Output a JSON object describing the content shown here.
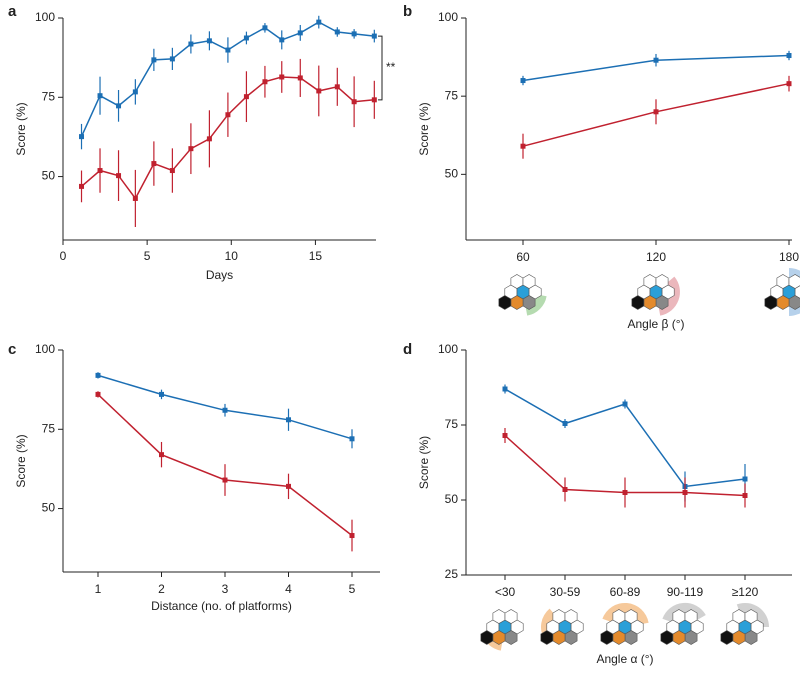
{
  "chart_data": [
    {
      "type": "line",
      "label": "a",
      "ylabel": "Score (%)",
      "xlabel": "Days",
      "annotation": "**",
      "x": [
        1.1,
        2.2,
        3.3,
        4.3,
        5.4,
        6.5,
        7.6,
        8.7,
        9.8,
        10.9,
        12.0,
        13.0,
        14.1,
        15.2,
        16.3,
        17.3,
        18.5
      ],
      "xlim": [
        0,
        18.6
      ],
      "xticks": [
        0,
        5,
        10,
        15
      ],
      "ylim": [
        30,
        100
      ],
      "yticks": [
        50,
        75,
        100
      ],
      "series": [
        {
          "color": "#1c6fb4",
          "values": [
            62.6,
            75.5,
            72.3,
            76.7,
            86.8,
            87.1,
            91.8,
            92.8,
            89.9,
            93.7,
            96.9,
            93.1,
            95.3,
            98.7,
            95.6,
            95.0,
            94.3
          ],
          "errors": [
            4,
            6,
            5,
            4,
            3.5,
            3.5,
            3,
            3,
            4,
            2,
            1.5,
            3,
            2.5,
            2,
            1.5,
            1.5,
            2
          ]
        },
        {
          "color": "#c0212f",
          "values": [
            46.9,
            51.9,
            50.3,
            43.1,
            54.1,
            51.9,
            58.8,
            61.9,
            69.5,
            75.2,
            79.9,
            81.4,
            81.1,
            77.0,
            78.3,
            73.6,
            74.2
          ],
          "errors": [
            5,
            7,
            8,
            9,
            7,
            7,
            8,
            9,
            7,
            8,
            5,
            5,
            6,
            8,
            6,
            8,
            6
          ]
        }
      ]
    },
    {
      "type": "line",
      "label": "b",
      "ylabel": "Score (%)",
      "xlabel": "Angle β (°)",
      "categories": [
        "60",
        "120",
        "180"
      ],
      "ylim": [
        29,
        100
      ],
      "yticks": [
        50,
        75,
        100
      ],
      "series": [
        {
          "color": "#1c6fb4",
          "values": [
            80,
            86.5,
            88
          ],
          "errors": [
            1.5,
            2,
            1.5
          ]
        },
        {
          "color": "#c0212f",
          "values": [
            59,
            70,
            79
          ],
          "errors": [
            4,
            4,
            2.5
          ]
        }
      ]
    },
    {
      "type": "line",
      "label": "c",
      "ylabel": "Score (%)",
      "xlabel": "Distance (no. of platforms)",
      "categories": [
        "1",
        "2",
        "3",
        "4",
        "5"
      ],
      "ylim": [
        30,
        100
      ],
      "yticks": [
        50,
        75,
        100
      ],
      "series": [
        {
          "color": "#1c6fb4",
          "values": [
            92,
            86,
            81,
            78,
            72
          ],
          "errors": [
            1,
            1.5,
            2,
            3.5,
            3
          ]
        },
        {
          "color": "#c0212f",
          "values": [
            86,
            67,
            59,
            57,
            41.5
          ],
          "errors": [
            1,
            4,
            5,
            4,
            5
          ]
        }
      ]
    },
    {
      "type": "line",
      "label": "d",
      "ylabel": "Score (%)",
      "xlabel": "Angle α (°)",
      "categories": [
        "<30",
        "30-59",
        "60-89",
        "90-119",
        "≥120"
      ],
      "ylim": [
        25,
        100
      ],
      "yticks": [
        25,
        50,
        75,
        100
      ],
      "series": [
        {
          "color": "#1c6fb4",
          "values": [
            87,
            75.5,
            82,
            54.5,
            57
          ],
          "errors": [
            1.5,
            1.5,
            1.5,
            5,
            5
          ]
        },
        {
          "color": "#c0212f",
          "values": [
            71.5,
            53.5,
            52.5,
            52.5,
            51.5
          ],
          "errors": [
            2.5,
            4,
            5,
            5,
            4
          ]
        }
      ]
    }
  ]
}
